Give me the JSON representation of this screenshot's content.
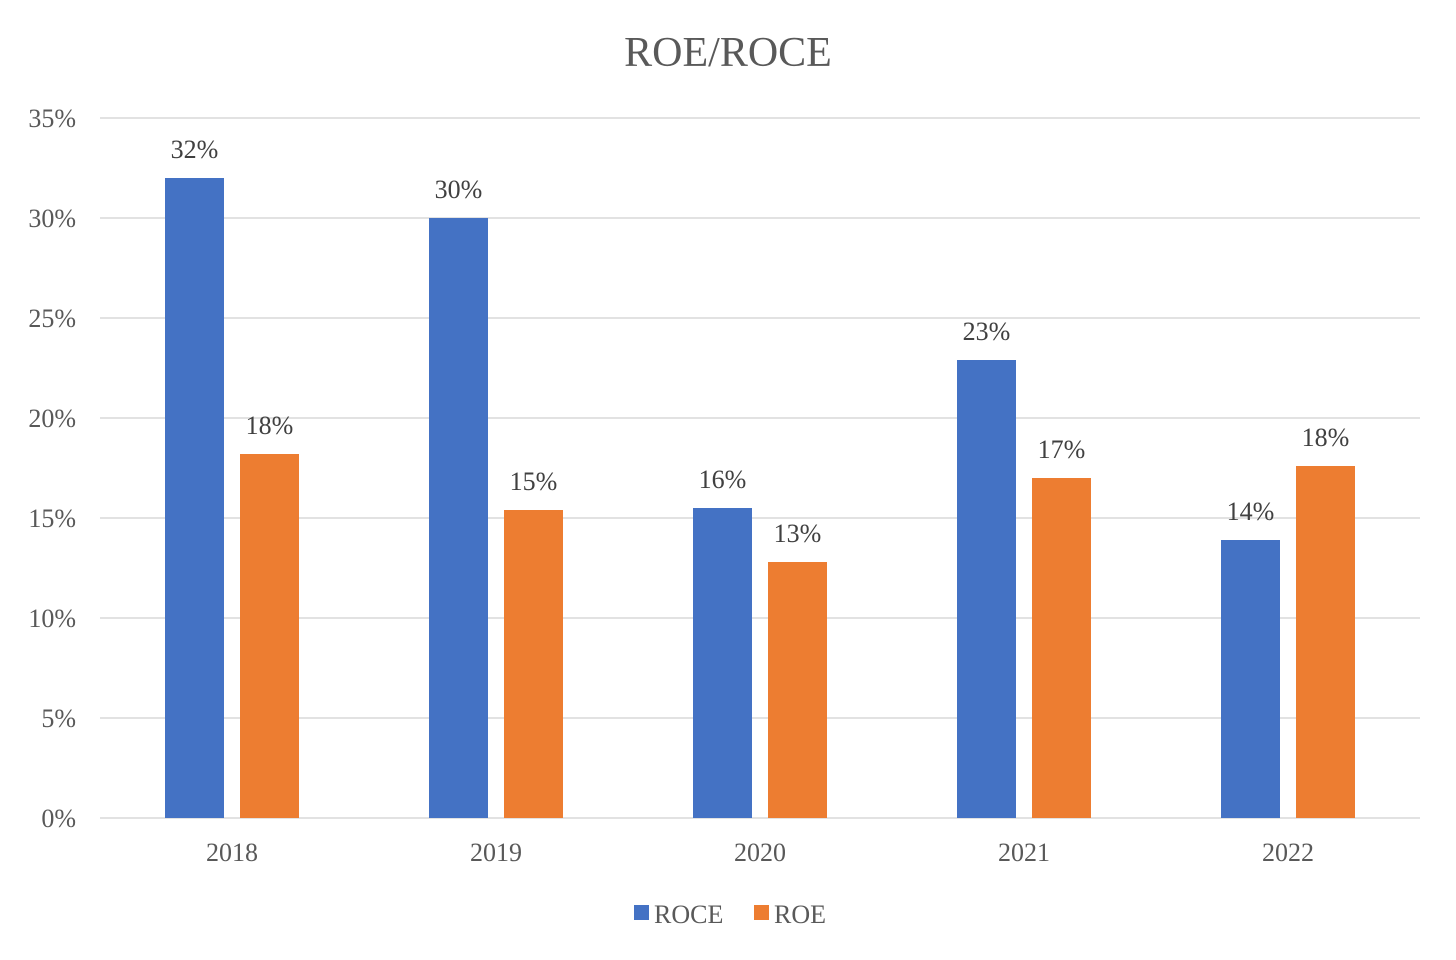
{
  "chart_data": {
    "type": "bar",
    "title": "ROE/ROCE",
    "categories": [
      "2018",
      "2019",
      "2020",
      "2021",
      "2022"
    ],
    "series": [
      {
        "name": "ROCE",
        "color": "#4472C4",
        "values": [
          0.32,
          0.3,
          0.155,
          0.229,
          0.139
        ],
        "labels": [
          "32%",
          "30%",
          "16%",
          "23%",
          "14%"
        ]
      },
      {
        "name": "ROE",
        "color": "#ED7D31",
        "values": [
          0.182,
          0.154,
          0.128,
          0.17,
          0.176
        ],
        "labels": [
          "18%",
          "15%",
          "13%",
          "17%",
          "18%"
        ]
      }
    ],
    "ylim": [
      0,
      0.35
    ],
    "yticks": [
      0,
      0.05,
      0.1,
      0.15,
      0.2,
      0.25,
      0.3,
      0.35
    ],
    "ytick_labels": [
      "0%",
      "5%",
      "10%",
      "15%",
      "20%",
      "25%",
      "30%",
      "35%"
    ],
    "xlabel": "",
    "ylabel": "",
    "grid": true,
    "legend_position": "bottom"
  }
}
